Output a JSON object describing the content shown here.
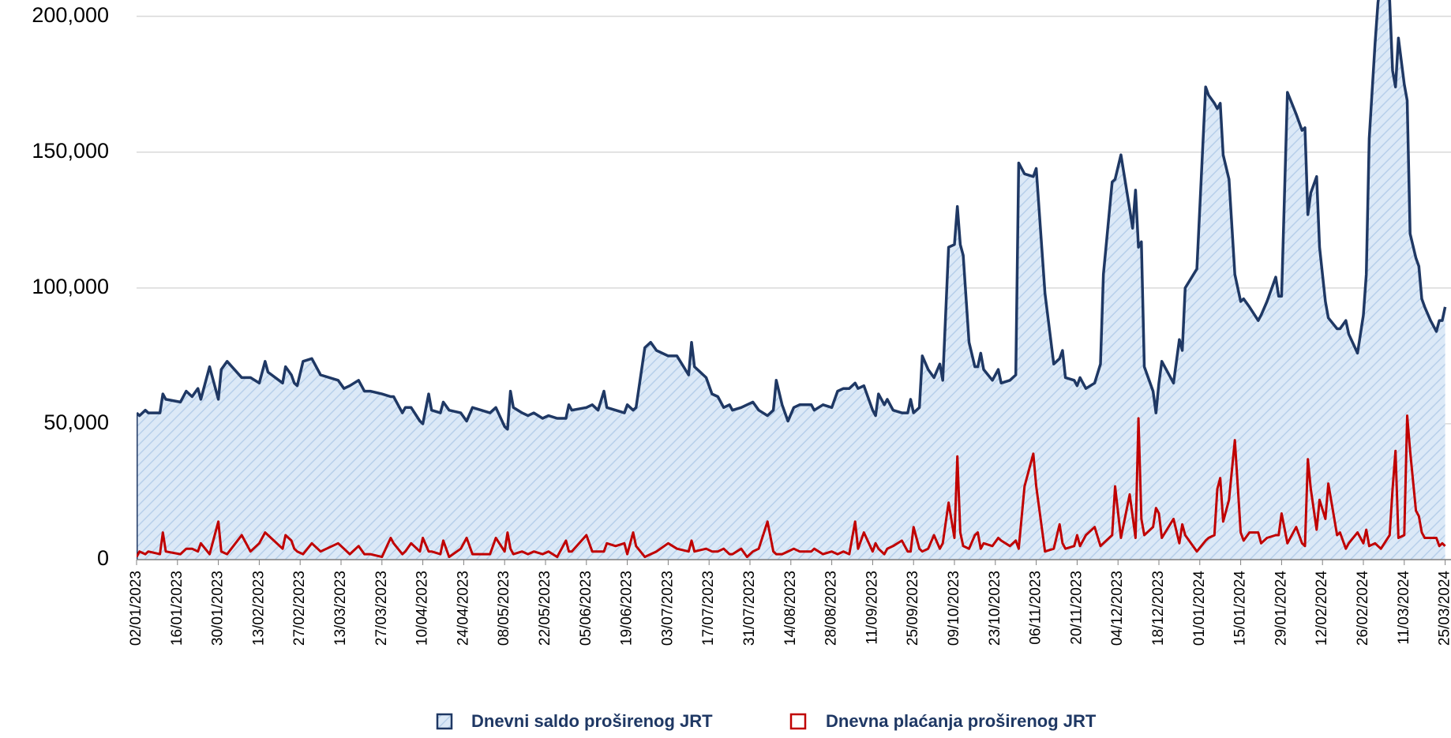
{
  "chart_data": {
    "type": "line",
    "x": [
      "02/01/2023",
      "03/01/2023",
      "05/01/2023",
      "06/01/2023",
      "10/01/2023",
      "11/01/2023",
      "12/01/2023",
      "17/01/2023",
      "19/01/2023",
      "21/01/2023",
      "23/01/2023",
      "24/01/2023",
      "27/01/2023",
      "30/01/2023",
      "31/01/2023",
      "02/02/2023",
      "07/02/2023",
      "10/02/2023",
      "13/02/2023",
      "15/02/2023",
      "16/02/2023",
      "21/02/2023",
      "22/02/2023",
      "24/02/2023",
      "25/02/2023",
      "26/02/2023",
      "28/02/2023",
      "03/03/2023",
      "06/03/2023",
      "12/03/2023",
      "14/03/2023",
      "16/03/2023",
      "19/03/2023",
      "21/03/2023",
      "23/03/2023",
      "27/03/2023",
      "30/03/2023",
      "31/03/2023",
      "03/04/2023",
      "04/04/2023",
      "06/04/2023",
      "09/04/2023",
      "10/04/2023",
      "12/04/2023",
      "13/04/2023",
      "16/04/2023",
      "17/04/2023",
      "19/04/2023",
      "23/04/2023",
      "25/04/2023",
      "27/04/2023",
      "03/05/2023",
      "05/05/2023",
      "08/05/2023",
      "09/05/2023",
      "10/05/2023",
      "11/05/2023",
      "14/05/2023",
      "16/05/2023",
      "18/05/2023",
      "21/05/2023",
      "23/05/2023",
      "26/05/2023",
      "29/05/2023",
      "30/05/2023",
      "31/05/2023",
      "05/06/2023",
      "07/06/2023",
      "09/06/2023",
      "11/06/2023",
      "12/06/2023",
      "15/06/2023",
      "18/06/2023",
      "19/06/2023",
      "21/06/2023",
      "22/06/2023",
      "25/06/2023",
      "27/06/2023",
      "29/06/2023",
      "03/07/2023",
      "06/07/2023",
      "10/07/2023",
      "11/07/2023",
      "12/07/2023",
      "16/07/2023",
      "18/07/2023",
      "20/07/2023",
      "22/07/2023",
      "24/07/2023",
      "25/07/2023",
      "28/07/2023",
      "30/07/2023",
      "01/08/2023",
      "03/08/2023",
      "06/08/2023",
      "08/08/2023",
      "09/08/2023",
      "11/08/2023",
      "13/08/2023",
      "15/08/2023",
      "17/08/2023",
      "21/08/2023",
      "22/08/2023",
      "25/08/2023",
      "28/08/2023",
      "30/08/2023",
      "01/09/2023",
      "03/09/2023",
      "05/09/2023",
      "06/09/2023",
      "08/09/2023",
      "11/09/2023",
      "12/09/2023",
      "13/09/2023",
      "15/09/2023",
      "16/09/2023",
      "18/09/2023",
      "21/09/2023",
      "23/09/2023",
      "24/09/2023",
      "25/09/2023",
      "27/09/2023",
      "28/09/2023",
      "30/09/2023",
      "02/10/2023",
      "04/10/2023",
      "05/10/2023",
      "07/10/2023",
      "09/10/2023",
      "10/10/2023",
      "11/10/2023",
      "12/10/2023",
      "14/10/2023",
      "16/10/2023",
      "17/10/2023",
      "18/10/2023",
      "19/10/2023",
      "22/10/2023",
      "24/10/2023",
      "25/10/2023",
      "28/10/2023",
      "30/10/2023",
      "31/10/2023",
      "02/11/2023",
      "05/11/2023",
      "06/11/2023",
      "09/11/2023",
      "12/11/2023",
      "14/11/2023",
      "15/11/2023",
      "16/11/2023",
      "19/11/2023",
      "20/11/2023",
      "21/11/2023",
      "23/11/2023",
      "26/11/2023",
      "28/11/2023",
      "29/11/2023",
      "02/12/2023",
      "03/12/2023",
      "05/12/2023",
      "08/12/2023",
      "09/12/2023",
      "10/12/2023",
      "11/12/2023",
      "12/12/2023",
      "13/12/2023",
      "16/12/2023",
      "17/12/2023",
      "18/12/2023",
      "19/12/2023",
      "23/12/2023",
      "25/12/2023",
      "26/12/2023",
      "27/12/2023",
      "31/12/2023",
      "03/01/2024",
      "04/01/2024",
      "06/01/2024",
      "07/01/2024",
      "08/01/2024",
      "09/01/2024",
      "11/01/2024",
      "13/01/2024",
      "15/01/2024",
      "16/01/2024",
      "18/01/2024",
      "21/01/2024",
      "22/01/2024",
      "24/01/2024",
      "27/01/2024",
      "28/01/2024",
      "29/01/2024",
      "31/01/2024",
      "03/02/2024",
      "05/02/2024",
      "06/02/2024",
      "07/02/2024",
      "08/02/2024",
      "10/02/2024",
      "11/02/2024",
      "13/02/2024",
      "14/02/2024",
      "17/02/2024",
      "18/02/2024",
      "20/02/2024",
      "21/02/2024",
      "24/02/2024",
      "26/02/2024",
      "27/02/2024",
      "28/02/2024",
      "01/03/2024",
      "02/03/2024",
      "03/03/2024",
      "06/03/2024",
      "07/03/2024",
      "08/03/2024",
      "09/03/2024",
      "11/03/2024",
      "12/03/2024",
      "13/03/2024",
      "15/03/2024",
      "16/03/2024",
      "17/03/2024",
      "18/03/2024",
      "20/03/2024",
      "22/03/2024",
      "23/03/2024",
      "24/03/2024",
      "25/03/2024"
    ],
    "series": [
      {
        "name": "Dnevni saldo proširenog JRT",
        "type": "area",
        "color": "#1f3864",
        "fill": "#dce9f7",
        "hatch": "#b7cfea",
        "values": [
          54000,
          53000,
          55000,
          54000,
          54000,
          61000,
          59000,
          58000,
          62000,
          60000,
          63000,
          59000,
          71000,
          59000,
          70000,
          73000,
          67000,
          67000,
          65000,
          73000,
          69000,
          65000,
          71000,
          68000,
          65000,
          64000,
          73000,
          74000,
          68000,
          66000,
          63000,
          64000,
          66000,
          62000,
          62000,
          61000,
          60000,
          60000,
          54000,
          56000,
          56000,
          51000,
          50000,
          61000,
          55000,
          54000,
          58000,
          55000,
          54000,
          51000,
          56000,
          54000,
          56000,
          49000,
          48000,
          62000,
          56000,
          54000,
          53000,
          54000,
          52000,
          53000,
          52000,
          52000,
          57000,
          55000,
          56000,
          57000,
          55000,
          62000,
          56000,
          55000,
          54000,
          57000,
          55000,
          56000,
          78000,
          80000,
          77000,
          75000,
          75000,
          68000,
          80000,
          71000,
          67000,
          61000,
          60000,
          56000,
          57000,
          55000,
          56000,
          57000,
          58000,
          55000,
          53000,
          55000,
          66000,
          57000,
          51000,
          56000,
          57000,
          57000,
          55000,
          57000,
          56000,
          62000,
          63000,
          63000,
          65000,
          63000,
          64000,
          55000,
          53000,
          61000,
          57000,
          59000,
          55000,
          54000,
          54000,
          59000,
          54000,
          56000,
          75000,
          70000,
          67000,
          72000,
          66000,
          115000,
          116000,
          130000,
          116000,
          112000,
          80000,
          71000,
          71000,
          76000,
          70000,
          66000,
          70000,
          65000,
          66000,
          68000,
          146000,
          142000,
          141000,
          144000,
          98000,
          72000,
          74000,
          77000,
          67000,
          66000,
          64000,
          67000,
          63000,
          65000,
          72000,
          105000,
          139000,
          140000,
          149000,
          129000,
          122000,
          136000,
          115000,
          117000,
          71000,
          62000,
          54000,
          65000,
          73000,
          65000,
          81000,
          77000,
          100000,
          107000,
          174000,
          171000,
          168000,
          166000,
          168000,
          149000,
          140000,
          105000,
          95000,
          96000,
          93000,
          88000,
          90000,
          95000,
          104000,
          97000,
          97000,
          172000,
          164000,
          158000,
          159000,
          127000,
          135000,
          141000,
          115000,
          95000,
          89000,
          85000,
          85000,
          88000,
          83000,
          76000,
          90000,
          105000,
          155000,
          190000,
          205000,
          213000,
          206000,
          180000,
          174000,
          192000,
          175000,
          169000,
          120000,
          111000,
          108000,
          96000,
          93000,
          88000,
          84000,
          88000,
          88000,
          93000
        ]
      },
      {
        "name": "Dnevna plaćanja proširenog JRT",
        "type": "line",
        "color": "#c00000",
        "values": [
          1000,
          3000,
          2000,
          3000,
          2000,
          10000,
          3000,
          2000,
          4000,
          4000,
          3000,
          6000,
          2000,
          14000,
          3000,
          2000,
          9000,
          3000,
          6000,
          10000,
          9000,
          4000,
          9000,
          7000,
          4000,
          3000,
          2000,
          6000,
          3000,
          6000,
          4000,
          2000,
          5000,
          2000,
          2000,
          1000,
          8000,
          6000,
          2000,
          3000,
          6000,
          3000,
          8000,
          3000,
          3000,
          2000,
          7000,
          1000,
          4000,
          8000,
          2000,
          2000,
          8000,
          3000,
          10000,
          4000,
          2000,
          3000,
          2000,
          3000,
          2000,
          3000,
          1000,
          7000,
          3000,
          3000,
          9000,
          3000,
          3000,
          3000,
          6000,
          5000,
          6000,
          2000,
          10000,
          5000,
          1000,
          2000,
          3000,
          6000,
          4000,
          3000,
          7000,
          3000,
          4000,
          3000,
          3000,
          4000,
          2000,
          2000,
          4000,
          1000,
          3000,
          4000,
          14000,
          3000,
          2000,
          2000,
          3000,
          4000,
          3000,
          3000,
          4000,
          2000,
          3000,
          2000,
          3000,
          2000,
          14000,
          4000,
          10000,
          3000,
          6000,
          4000,
          2000,
          4000,
          5000,
          7000,
          3000,
          3000,
          12000,
          4000,
          3000,
          4000,
          9000,
          4000,
          6000,
          21000,
          8000,
          38000,
          10000,
          5000,
          4000,
          9000,
          10000,
          4000,
          6000,
          5000,
          8000,
          7000,
          5000,
          7000,
          4000,
          27000,
          39000,
          27000,
          3000,
          4000,
          13000,
          6000,
          4000,
          5000,
          9000,
          5000,
          9000,
          12000,
          5000,
          6000,
          9000,
          27000,
          8000,
          24000,
          16000,
          8000,
          52000,
          15000,
          9000,
          12000,
          19000,
          17000,
          8000,
          15000,
          6000,
          13000,
          9000,
          3000,
          7000,
          8000,
          9000,
          26000,
          30000,
          14000,
          22000,
          44000,
          10000,
          7000,
          10000,
          10000,
          6000,
          8000,
          9000,
          9000,
          17000,
          6000,
          12000,
          6000,
          5000,
          37000,
          26000,
          11000,
          22000,
          15000,
          28000,
          9000,
          10000,
          4000,
          6000,
          10000,
          6000,
          11000,
          5000,
          6000,
          5000,
          4000,
          9000,
          26000,
          40000,
          8000,
          9000,
          53000,
          40000,
          18000,
          16000,
          10000,
          8000,
          8000,
          8000,
          5000,
          6000,
          5000
        ]
      }
    ],
    "xlim": [
      "02/01/2023",
      "27/03/2024"
    ],
    "xticks": [
      "02/01/2023",
      "16/01/2023",
      "30/01/2023",
      "13/02/2023",
      "27/02/2023",
      "13/03/2023",
      "27/03/2023",
      "10/04/2023",
      "24/04/2023",
      "08/05/2023",
      "22/05/2023",
      "05/06/2023",
      "19/06/2023",
      "03/07/2023",
      "17/07/2023",
      "31/07/2023",
      "14/08/2023",
      "28/08/2023",
      "11/09/2023",
      "25/09/2023",
      "09/10/2023",
      "23/10/2023",
      "06/11/2023",
      "20/11/2023",
      "04/12/2023",
      "18/12/2023",
      "01/01/2024",
      "15/01/2024",
      "29/01/2024",
      "12/02/2024",
      "26/02/2024",
      "11/03/2024",
      "25/03/2024"
    ],
    "ylim": [
      0,
      206000
    ],
    "yticks": [
      0,
      {
        "value": 50000,
        "label": "50,000"
      },
      {
        "value": 100000,
        "label": "100,000"
      },
      {
        "value": 150000,
        "label": "150,000"
      },
      {
        "value": 200000,
        "label": "200,000"
      }
    ],
    "grid": true,
    "legend": "bottom"
  }
}
